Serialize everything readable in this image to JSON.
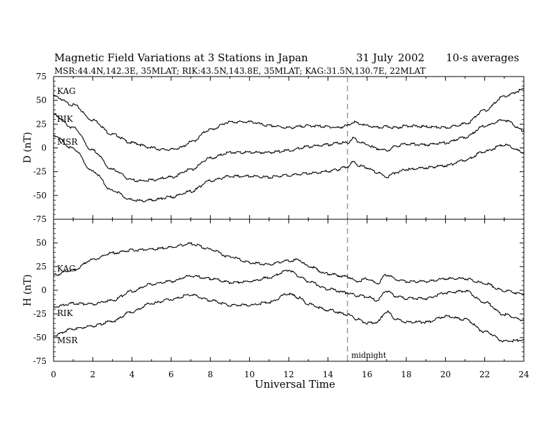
{
  "title": {
    "main": "Magnetic Field Variations at 3 Stations in Japan",
    "date": "31 July",
    "year": "2002",
    "avg": "10-s averages",
    "stations": "MSR:44.4N,142.3E, 35MLAT;  RIK:43.5N,143.8E, 35MLAT;  KAG:31.5N,130.7E, 22MLAT"
  },
  "xlabel": "Universal Time",
  "midnight_label": "midnight",
  "chart_data": [
    {
      "type": "line",
      "panel": "D",
      "ylabel": "D (nT)",
      "xlim": [
        0,
        24
      ],
      "ylim": [
        -75,
        75
      ],
      "xticks": [
        "0",
        "2",
        "4",
        "6",
        "8",
        "10",
        "12",
        "14",
        "16",
        "18",
        "20",
        "22",
        "24"
      ],
      "yticks": [
        "75",
        "50",
        "25",
        "0",
        "-25",
        "-50",
        "-75"
      ],
      "marker_x": 15,
      "series": [
        {
          "name": "KAG",
          "x": [
            0,
            1,
            2,
            3,
            4,
            5,
            5.5,
            6,
            6.5,
            7,
            8,
            9,
            10,
            11,
            12,
            13,
            14,
            14.5,
            15,
            15.3,
            15.6,
            16,
            16.5,
            17,
            17.5,
            18,
            19,
            20,
            21,
            22,
            23,
            24
          ],
          "y": [
            55,
            46,
            30,
            15,
            6,
            1,
            -1,
            -1,
            1,
            7,
            20,
            28,
            28,
            24,
            22,
            24,
            23,
            22,
            24,
            28,
            26,
            24,
            22,
            23,
            22,
            24,
            23,
            22,
            26,
            40,
            55,
            62
          ]
        },
        {
          "name": "RIK",
          "x": [
            0,
            1,
            2,
            3,
            4,
            4.5,
            5,
            6,
            7,
            8,
            9,
            10,
            11,
            12,
            13,
            14,
            14.5,
            15,
            15.3,
            15.6,
            16,
            16.5,
            17,
            17.5,
            18,
            19,
            20,
            21,
            22,
            23,
            24
          ],
          "y": [
            36,
            22,
            -2,
            -22,
            -33,
            -34,
            -33,
            -30,
            -22,
            -10,
            -4,
            -4,
            -4,
            -2,
            2,
            4,
            6,
            6,
            11,
            7,
            4,
            0,
            -2,
            3,
            5,
            4,
            6,
            12,
            24,
            30,
            19
          ]
        },
        {
          "name": "MSR",
          "x": [
            0,
            1,
            2,
            3,
            4,
            4.5,
            5,
            6,
            7,
            8,
            9,
            10,
            11,
            12,
            13,
            14,
            14.5,
            15,
            15.3,
            15.6,
            16,
            16.5,
            17,
            17.5,
            18,
            19,
            20,
            21,
            22,
            23,
            24
          ],
          "y": [
            14,
            0,
            -24,
            -44,
            -54,
            -55,
            -54,
            -51,
            -45,
            -34,
            -29,
            -29,
            -30,
            -28,
            -26,
            -24,
            -22,
            -19,
            -14,
            -18,
            -20,
            -25,
            -30,
            -25,
            -22,
            -20,
            -18,
            -12,
            -3,
            4,
            -4
          ]
        }
      ],
      "series_labels_color": "#000000"
    },
    {
      "type": "line",
      "panel": "H",
      "ylabel": "H (nT)",
      "xlim": [
        0,
        24
      ],
      "ylim": [
        -75,
        75
      ],
      "xticks": [
        "0",
        "2",
        "4",
        "6",
        "8",
        "10",
        "12",
        "14",
        "16",
        "18",
        "20",
        "22",
        "24"
      ],
      "yticks": [
        "50",
        "25",
        "0",
        "-25",
        "-50",
        "-75"
      ],
      "marker_x": 15,
      "series": [
        {
          "name": "KAG",
          "x": [
            0,
            1,
            2,
            3,
            4,
            5,
            6,
            7,
            8,
            9,
            10,
            11,
            12,
            12.5,
            13,
            14,
            15,
            15.5,
            16,
            16.5,
            17,
            17.5,
            18,
            19,
            20,
            21,
            22,
            23,
            24
          ],
          "y": [
            17,
            22,
            33,
            40,
            43,
            44,
            46,
            50,
            44,
            36,
            30,
            28,
            32,
            33,
            26,
            18,
            15,
            10,
            13,
            8,
            17,
            12,
            10,
            10,
            13,
            13,
            8,
            0,
            -3
          ]
        },
        {
          "name": "RIK",
          "x": [
            0,
            1,
            2,
            3,
            4,
            5,
            6,
            7,
            8,
            9,
            10,
            11,
            12,
            12.5,
            13,
            14,
            15,
            15.5,
            16,
            16.5,
            17,
            17.5,
            18,
            19,
            20,
            21,
            22,
            23,
            24
          ],
          "y": [
            -17,
            -13,
            -14,
            -10,
            0,
            7,
            10,
            16,
            13,
            9,
            10,
            14,
            22,
            16,
            10,
            2,
            -2,
            -5,
            -6,
            -10,
            0,
            -6,
            -8,
            -8,
            -2,
            0,
            -12,
            -25,
            -31
          ]
        },
        {
          "name": "MSR",
          "x": [
            0,
            1,
            2,
            3,
            4,
            5,
            6,
            7,
            8,
            9,
            10,
            11,
            12,
            12.5,
            13,
            14,
            15,
            15.5,
            16,
            16.5,
            17,
            17.5,
            18,
            19,
            20,
            21,
            22,
            23,
            24
          ],
          "y": [
            -47,
            -40,
            -37,
            -32,
            -22,
            -13,
            -9,
            -4,
            -10,
            -15,
            -15,
            -12,
            -3,
            -7,
            -14,
            -20,
            -25,
            -30,
            -34,
            -33,
            -22,
            -30,
            -33,
            -33,
            -27,
            -30,
            -43,
            -53,
            -52
          ]
        }
      ]
    }
  ]
}
